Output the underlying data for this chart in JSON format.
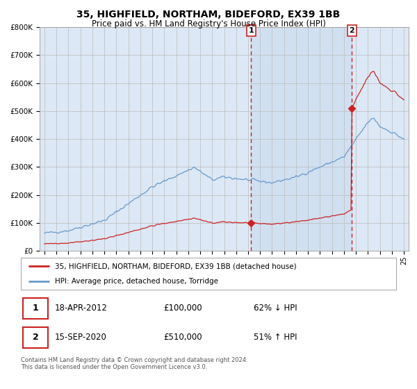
{
  "title": "35, HIGHFIELD, NORTHAM, BIDEFORD, EX39 1BB",
  "subtitle": "Price paid vs. HM Land Registry's House Price Index (HPI)",
  "ylim": [
    0,
    800000
  ],
  "yticks": [
    0,
    100000,
    200000,
    300000,
    400000,
    500000,
    600000,
    700000,
    800000
  ],
  "ytick_labels": [
    "£0",
    "£100K",
    "£200K",
    "£300K",
    "£400K",
    "£500K",
    "£600K",
    "£700K",
    "£800K"
  ],
  "hpi_color": "#6699cc",
  "price_color": "#cc2222",
  "bg_color": "#dce8f5",
  "fig_bg": "#ffffff",
  "grid_color": "#bbbbbb",
  "sale1_date": "18-APR-2012",
  "sale1_price": 100000,
  "sale1_hpi_pct": "62% ↓ HPI",
  "sale2_date": "15-SEP-2020",
  "sale2_price": 510000,
  "sale2_hpi_pct": "51% ↑ HPI",
  "legend1": "35, HIGHFIELD, NORTHAM, BIDEFORD, EX39 1BB (detached house)",
  "legend2": "HPI: Average price, detached house, Torridge",
  "footnote1": "Contains HM Land Registry data © Crown copyright and database right 2024.",
  "footnote2": "This data is licensed under the Open Government Licence v3.0.",
  "x_start_year": 1995,
  "x_end_year": 2025
}
